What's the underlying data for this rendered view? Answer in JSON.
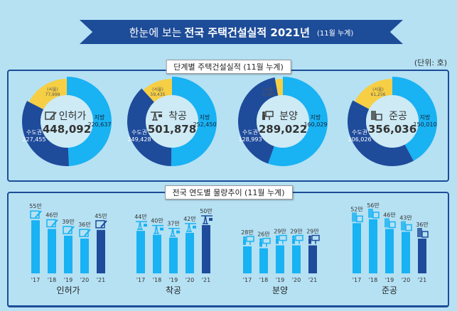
{
  "header": {
    "title_prefix": "한눈에 보는",
    "title_bold": "전국 주택건설실적 2021년",
    "title_note": "(11월 누계)"
  },
  "unit_label": "(단위: 호)",
  "colors": {
    "local": "#19b2f3",
    "capital": "#1f4b9b",
    "seoul": "#f6cf45",
    "banner": "#1d4c98",
    "bar_past": "#19b2f3",
    "bar_current": "#1f4b9b"
  },
  "donut_panel": {
    "label": "단계별 주택건설실적 (11월 누계)"
  },
  "trend_panel": {
    "label": "전국 연도별 물량추이 (11월 누계)"
  },
  "chart_data": [
    {
      "type": "pie",
      "variant": "donut",
      "stage": "인허가",
      "icon": "document-pen-icon",
      "total": "448,092",
      "slices": [
        {
          "name": "지방",
          "value": 220637,
          "label": "220,637"
        },
        {
          "name": "수도권",
          "value": 227455,
          "label": "227,455"
        },
        {
          "name": "(서울)",
          "value": 77999,
          "label": "77,999",
          "subset_of": "수도권"
        }
      ]
    },
    {
      "type": "pie",
      "variant": "donut",
      "stage": "착공",
      "icon": "crane-icon",
      "total": "501,878",
      "slices": [
        {
          "name": "지방",
          "value": 252450,
          "label": "252,450"
        },
        {
          "name": "수도권",
          "value": 249428,
          "label": "249,428"
        },
        {
          "name": "(서울)",
          "value": 59435,
          "label": "59,435",
          "subset_of": "수도권"
        }
      ]
    },
    {
      "type": "pie",
      "variant": "donut",
      "stage": "분양",
      "icon": "presenter-icon",
      "total": "289,022",
      "slices": [
        {
          "name": "지방",
          "value": 160029,
          "label": "160,029"
        },
        {
          "name": "수도권",
          "value": 128993,
          "label": "128,993"
        },
        {
          "name": "(서울)",
          "value": 8383,
          "label": "8,383",
          "subset_of": "수도권"
        }
      ]
    },
    {
      "type": "pie",
      "variant": "donut",
      "stage": "준공",
      "icon": "building-icon",
      "total": "356,036",
      "slices": [
        {
          "name": "지방",
          "value": 150010,
          "label": "150,010"
        },
        {
          "name": "수도권",
          "value": 206026,
          "label": "206,026"
        },
        {
          "name": "(서울)",
          "value": 61256,
          "label": "61,256",
          "subset_of": "수도권"
        }
      ]
    },
    {
      "type": "bar",
      "title": "인허가",
      "categories": [
        "'17",
        "'18",
        "'19",
        "'20",
        "'21"
      ],
      "values": [
        55,
        46,
        39,
        36,
        45
      ],
      "value_labels": [
        "55만",
        "46만",
        "39만",
        "36만",
        "45만"
      ],
      "icon": "document-pen-icon"
    },
    {
      "type": "bar",
      "title": "착공",
      "categories": [
        "'17",
        "'18",
        "'19",
        "'20",
        "'21"
      ],
      "values": [
        44,
        40,
        37,
        42,
        50
      ],
      "value_labels": [
        "44만",
        "40만",
        "37만",
        "42만",
        "50만"
      ],
      "icon": "crane-icon"
    },
    {
      "type": "bar",
      "title": "분양",
      "categories": [
        "'17",
        "'18",
        "'19",
        "'20",
        "'21"
      ],
      "values": [
        28,
        26,
        29,
        29,
        29
      ],
      "value_labels": [
        "28만",
        "26만",
        "29만",
        "29만",
        "29만"
      ],
      "icon": "presenter-icon"
    },
    {
      "type": "bar",
      "title": "준공",
      "categories": [
        "'17",
        "'18",
        "'19",
        "'20",
        "'21"
      ],
      "values": [
        52,
        56,
        46,
        43,
        36
      ],
      "value_labels": [
        "52만",
        "56만",
        "46만",
        "43만",
        "36만"
      ],
      "icon": "building-icon"
    }
  ]
}
